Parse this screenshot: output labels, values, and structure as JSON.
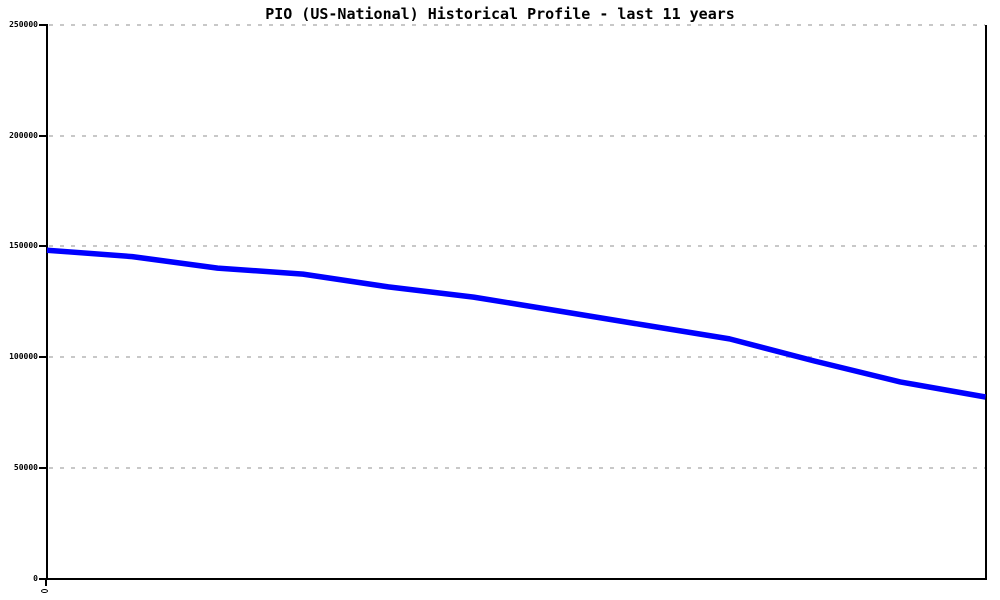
{
  "chart_data": {
    "type": "line",
    "title": "PIO (US-National) Historical Profile - last 11 years",
    "xlabel": "",
    "ylabel": "",
    "x": [
      0,
      1,
      2,
      3,
      4,
      5,
      6,
      7,
      8,
      9,
      10,
      11
    ],
    "x_tick_labels_visible": false,
    "values": [
      148300,
      145400,
      140200,
      137500,
      131700,
      127100,
      120800,
      114500,
      108200,
      98200,
      88800,
      82000
    ],
    "ylim": [
      0,
      250000
    ],
    "y_ticks": [
      0,
      50000,
      100000,
      150000,
      200000,
      250000
    ],
    "y_tick_labels": [
      "0",
      "50000",
      "100000",
      "150000",
      "200000",
      "250000"
    ],
    "grid": "horizontal-dashed",
    "legend": "none",
    "line_color": "#0000ff",
    "grid_color": "#c8c8c8",
    "axis_color": "#000000",
    "background_color": "#ffffff"
  }
}
